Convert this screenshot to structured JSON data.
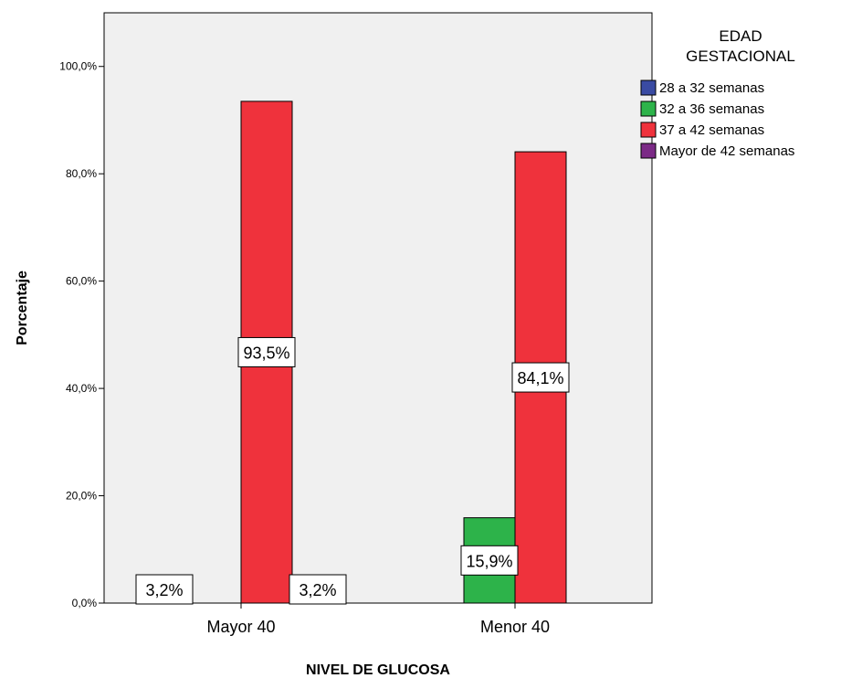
{
  "chart_data": {
    "type": "bar",
    "xlabel": "NIVEL DE GLUCOSA",
    "ylabel": "Porcentaje",
    "ylim": [
      0,
      110
    ],
    "y_ticks": [
      "0,0%",
      "20,0%",
      "40,0%",
      "60,0%",
      "80,0%",
      "100,0%"
    ],
    "y_tick_values": [
      0,
      20,
      40,
      60,
      80,
      100
    ],
    "categories": [
      "Mayor 40",
      "Menor 40"
    ],
    "legend": {
      "title_lines": [
        "EDAD",
        "GESTACIONAL"
      ],
      "placement": "top-right, outside plot"
    },
    "series": [
      {
        "name": "28 a 32 semanas",
        "color": "#3a4ba3",
        "values": [
          3.2,
          0
        ],
        "labels": [
          "3,2%",
          ""
        ]
      },
      {
        "name": "32 a 36 semanas",
        "color": "#2db34a",
        "values": [
          0,
          15.9
        ],
        "labels": [
          "",
          "15,9%"
        ]
      },
      {
        "name": "37 a 42 semanas",
        "color": "#ef323c",
        "values": [
          93.5,
          84.1
        ],
        "labels": [
          "93,5%",
          "84,1%"
        ]
      },
      {
        "name": "Mayor de 42 semanas",
        "color": "#7b2a86",
        "values": [
          3.2,
          0
        ],
        "labels": [
          "3,2%",
          ""
        ]
      }
    ],
    "plot_background": "#f0f0f0",
    "grid": false
  }
}
